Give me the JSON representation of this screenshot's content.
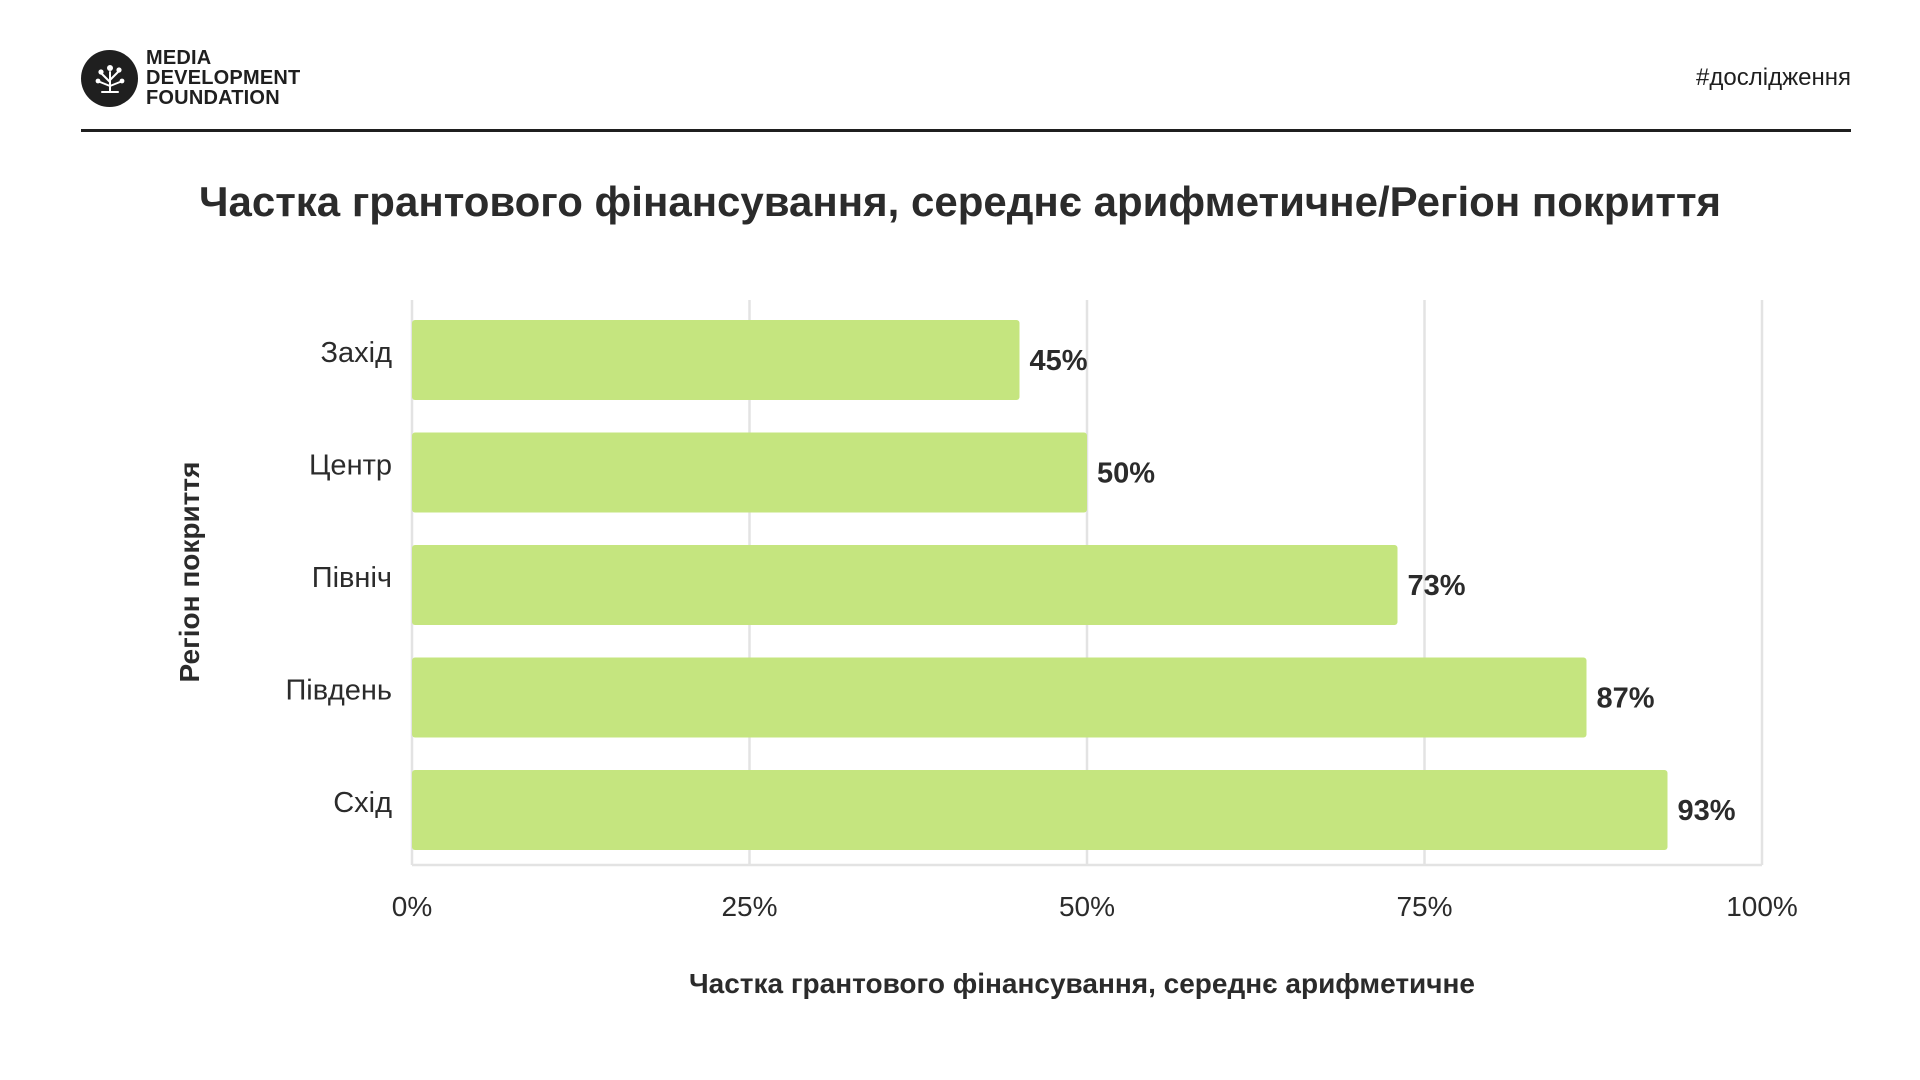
{
  "brand": {
    "line1": "MEDIA",
    "line2": "DEVELOPMENT",
    "line3": "FOUNDATION",
    "hashtag": "#дослідження"
  },
  "colors": {
    "bar": "#c5e57f",
    "text": "#2b2b2b",
    "grid": "#e3e3e3"
  },
  "chart_data": {
    "type": "bar",
    "orientation": "horizontal",
    "title": "Частка грантового фінансування, середнє арифметичне/Регіон покриття",
    "xlabel": "Частка грантового фінансування, середнє арифметичне",
    "ylabel": "Регіон покриття",
    "categories": [
      "Захід",
      "Центр",
      "Північ",
      "Південь",
      "Схід"
    ],
    "values": [
      45,
      50,
      73,
      87,
      93
    ],
    "value_labels": [
      "45%",
      "50%",
      "73%",
      "87%",
      "93%"
    ],
    "xlim": [
      0,
      100
    ],
    "xticks": [
      0,
      25,
      50,
      75,
      100
    ],
    "xtick_labels": [
      "0%",
      "25%",
      "50%",
      "75%",
      "100%"
    ],
    "grid": true
  }
}
